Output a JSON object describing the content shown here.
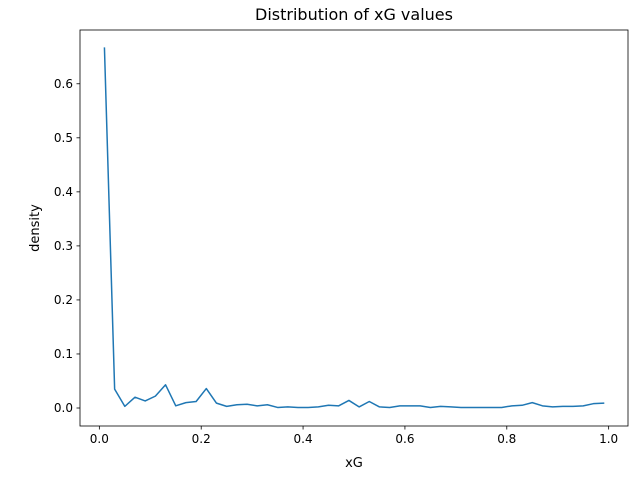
{
  "chart_data": {
    "type": "line",
    "title": "Distribution of xG values",
    "xlabel": "xG",
    "ylabel": "density",
    "xlim": [
      -0.038,
      1.038
    ],
    "ylim": [
      -0.0333,
      0.6995
    ],
    "xticks": [
      0.0,
      0.2,
      0.4,
      0.6,
      0.8,
      1.0
    ],
    "xtick_labels": [
      "0.0",
      "0.2",
      "0.4",
      "0.6",
      "0.8",
      "1.0"
    ],
    "yticks": [
      0.0,
      0.1,
      0.2,
      0.3,
      0.4,
      0.5,
      0.6
    ],
    "ytick_labels": [
      "0.0",
      "0.1",
      "0.2",
      "0.3",
      "0.4",
      "0.5",
      "0.6"
    ],
    "grid": false,
    "color": "#1f77b4",
    "series": [
      {
        "name": "",
        "x": [
          0.01,
          0.03,
          0.05,
          0.07,
          0.09,
          0.11,
          0.13,
          0.15,
          0.17,
          0.19,
          0.21,
          0.23,
          0.25,
          0.27,
          0.29,
          0.31,
          0.33,
          0.35,
          0.37,
          0.39,
          0.41,
          0.43,
          0.45,
          0.47,
          0.49,
          0.51,
          0.53,
          0.55,
          0.57,
          0.59,
          0.61,
          0.63,
          0.65,
          0.67,
          0.69,
          0.71,
          0.73,
          0.75,
          0.77,
          0.79,
          0.81,
          0.83,
          0.85,
          0.87,
          0.89,
          0.91,
          0.93,
          0.95,
          0.97,
          0.99
        ],
        "values": [
          0.666,
          0.035,
          0.003,
          0.02,
          0.013,
          0.022,
          0.043,
          0.004,
          0.01,
          0.012,
          0.036,
          0.009,
          0.003,
          0.006,
          0.007,
          0.004,
          0.006,
          0.001,
          0.002,
          0.001,
          0.001,
          0.002,
          0.005,
          0.004,
          0.014,
          0.002,
          0.012,
          0.002,
          0.001,
          0.004,
          0.004,
          0.004,
          0.001,
          0.003,
          0.002,
          0.001,
          0.001,
          0.001,
          0.001,
          0.001,
          0.004,
          0.005,
          0.01,
          0.004,
          0.002,
          0.003,
          0.003,
          0.004,
          0.008,
          0.009
        ]
      }
    ]
  }
}
